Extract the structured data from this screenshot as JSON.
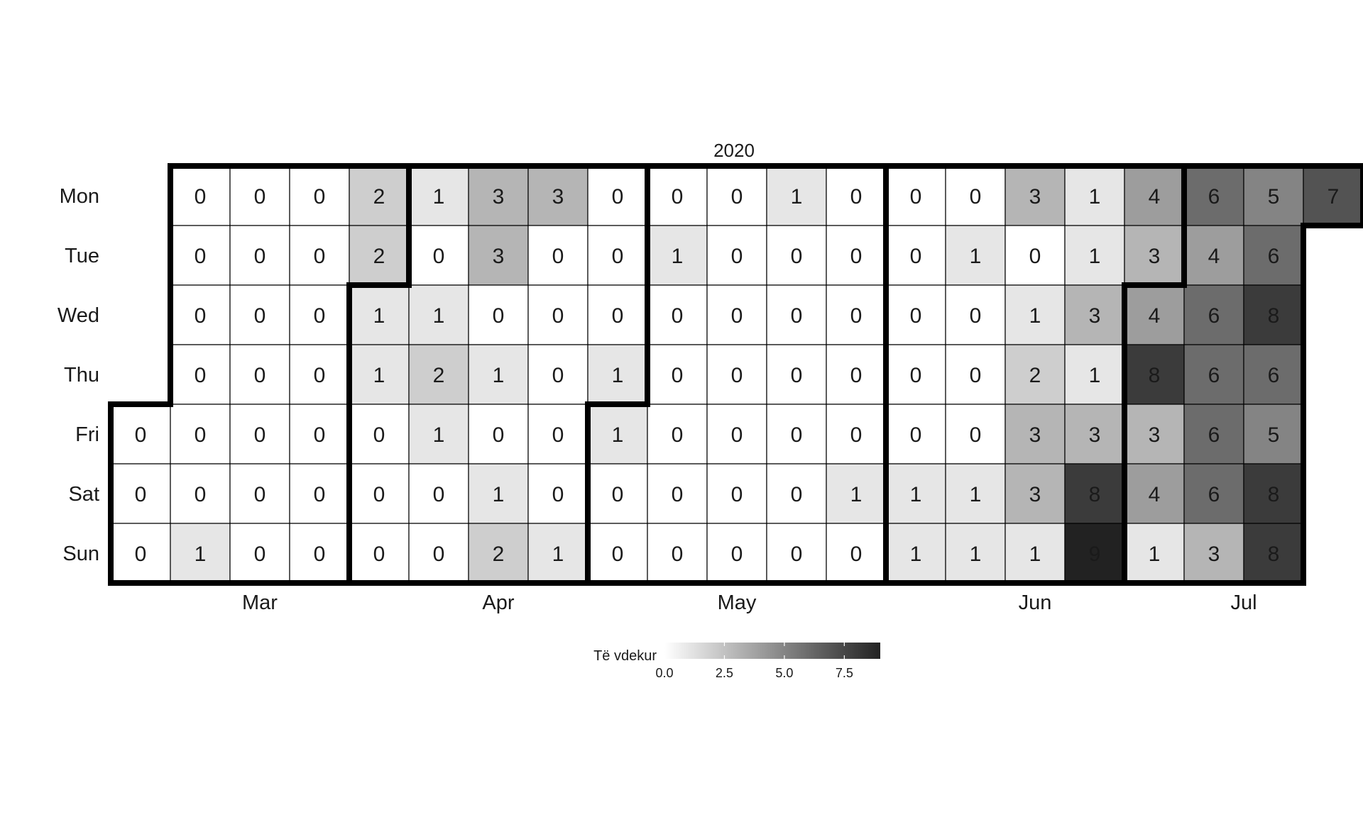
{
  "chart_data": {
    "type": "heatmap",
    "title": "2020",
    "y_categories": [
      "Mon",
      "Tue",
      "Wed",
      "Thu",
      "Fri",
      "Sat",
      "Sun"
    ],
    "month_labels": [
      "Mar",
      "Apr",
      "May",
      "Jun",
      "Jul"
    ],
    "month_first_days": [
      "2020-03-01",
      "2020-04-01",
      "2020-05-01",
      "2020-06-01",
      "2020-07-01"
    ],
    "start_date": "2020-03-06",
    "values": [
      0,
      0,
      0,
      0,
      0,
      0,
      0,
      0,
      0,
      1,
      0,
      0,
      0,
      0,
      0,
      0,
      0,
      0,
      0,
      0,
      0,
      0,
      0,
      0,
      2,
      2,
      1,
      1,
      0,
      0,
      0,
      1,
      0,
      1,
      2,
      1,
      0,
      0,
      3,
      3,
      0,
      1,
      0,
      1,
      2,
      3,
      0,
      0,
      0,
      0,
      0,
      1,
      0,
      0,
      0,
      1,
      1,
      0,
      0,
      0,
      1,
      0,
      0,
      0,
      0,
      0,
      0,
      0,
      0,
      0,
      0,
      0,
      0,
      1,
      0,
      0,
      0,
      0,
      0,
      0,
      0,
      0,
      0,
      0,
      0,
      1,
      0,
      0,
      0,
      0,
      0,
      0,
      1,
      1,
      0,
      1,
      0,
      0,
      0,
      1,
      1,
      3,
      0,
      1,
      2,
      3,
      3,
      1,
      1,
      1,
      3,
      1,
      3,
      8,
      9,
      4,
      3,
      4,
      8,
      3,
      4,
      1,
      6,
      4,
      6,
      6,
      6,
      6,
      3,
      5,
      6,
      8,
      6,
      5,
      8,
      8,
      7
    ],
    "legend": {
      "title": "Të vdekur",
      "ticks": [
        "0.0",
        "2.5",
        "5.0",
        "7.5"
      ],
      "tick_values": [
        0,
        2.5,
        5,
        7.5
      ],
      "range": [
        0,
        9
      ],
      "position": "bottom"
    },
    "colors": {
      "low": "#ffffff",
      "high": "#222222",
      "outline": "#000000",
      "cell_border": "#000000"
    }
  }
}
